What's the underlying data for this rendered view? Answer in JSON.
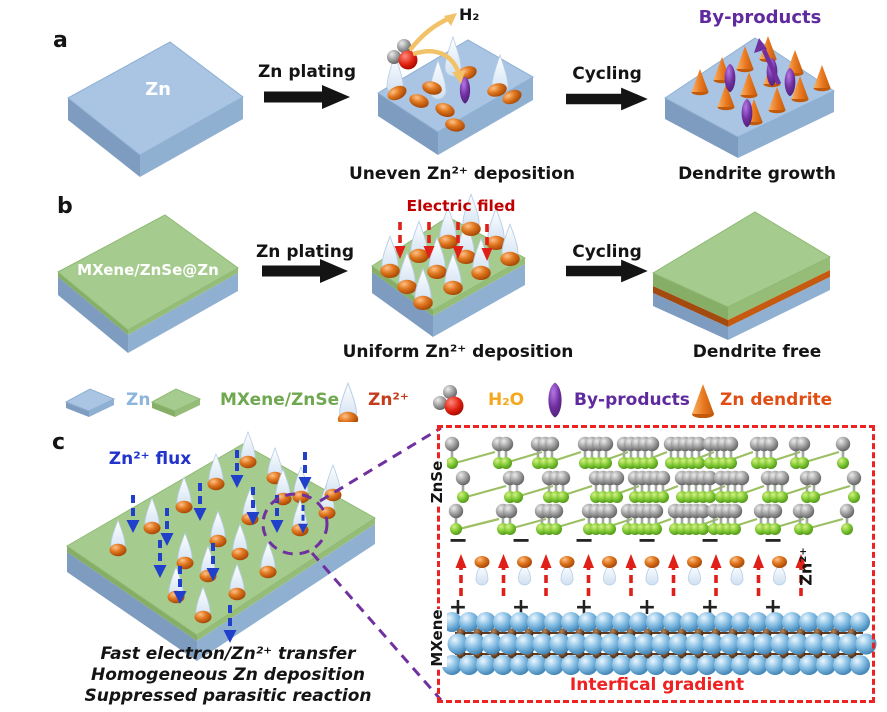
{
  "colors": {
    "zn_blue": "#a9c5e3",
    "mxene_green": "#a6cb8e",
    "orange_interlayer": "#c55a11",
    "legend_zn": "#8cb4dc",
    "legend_mxene": "#6fa850",
    "legend_zn_ion": "#c43c1c",
    "legend_h2o": "#f5a81e",
    "legend_byproducts": "#5f2a9e",
    "legend_dendrite": "#e04e14",
    "electric_field_red": "#c00000",
    "inset_red": "#ee2222",
    "flux_blue": "#2233cc",
    "byproducts_purple": "#6a2fa0"
  },
  "panel_a": {
    "label": "a",
    "slab_label": "Zn",
    "plating_label": "Zn plating",
    "h2_label": "H₂",
    "mid_caption": "Uneven Zn²⁺ deposition",
    "cycling_label": "Cycling",
    "byproducts_label": "By-products",
    "right_caption": "Dendrite growth"
  },
  "panel_b": {
    "label": "b",
    "slab_label": "MXene/ZnSe@Zn",
    "plating_label": "Zn plating",
    "efield_label": "Electric filed",
    "mid_caption": "Uniform Zn²⁺ deposition",
    "cycling_label": "Cycling",
    "right_caption": "Dendrite free"
  },
  "legend": {
    "items": [
      {
        "label": "Zn"
      },
      {
        "label": "MXene/ZnSe"
      },
      {
        "label": "Zn²⁺"
      },
      {
        "label": "H₂O"
      },
      {
        "label": "By-products"
      },
      {
        "label": "Zn dendrite"
      }
    ]
  },
  "panel_c": {
    "label": "c",
    "flux_label": "Zn²⁺ flux",
    "notes": [
      "Fast electron/Zn²⁺ transfer",
      "Homogeneous Zn deposition",
      "Suppressed parasitic reaction"
    ],
    "inset": {
      "znse_label": "ZnSe",
      "mxene_label": "MXene",
      "ion_label": "Zn²⁺",
      "gradient_label": "Interfical gradient",
      "minus_sign": "−",
      "plus_sign": "+",
      "minus_count": 6,
      "plus_count": 6,
      "arrow_count": 9,
      "ion_count": 8
    }
  }
}
